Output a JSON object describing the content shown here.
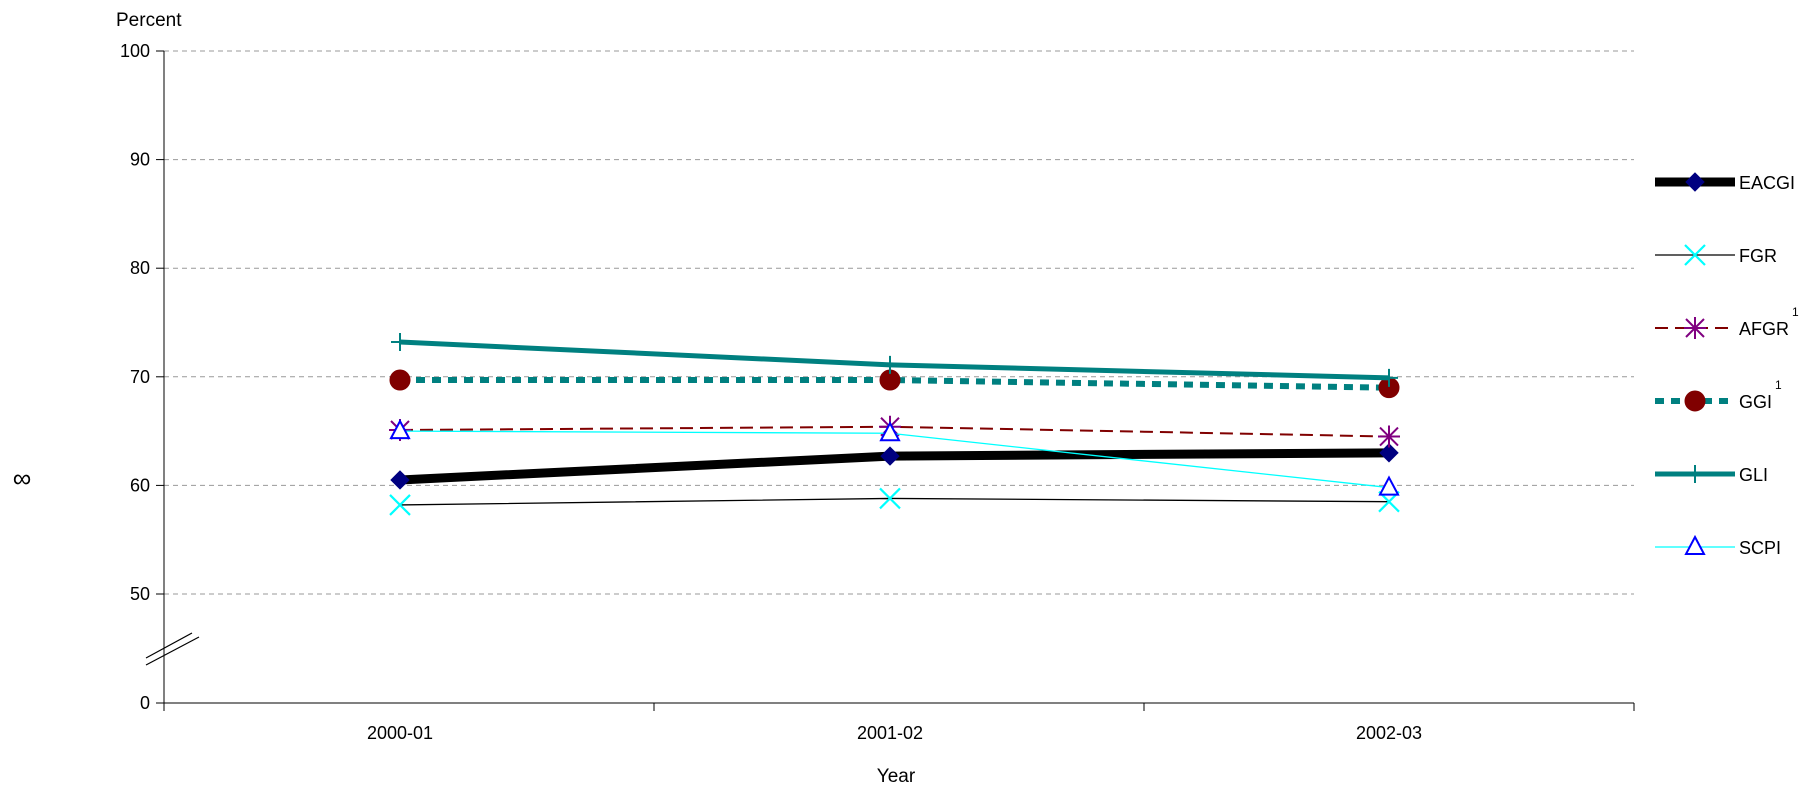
{
  "chart_data": {
    "type": "line",
    "title": "",
    "ylabel": "Percent",
    "xlabel": "Year",
    "side_mark": "∞",
    "categories": [
      "2000-01",
      "2001-02",
      "2002-03"
    ],
    "ylim": [
      0,
      100
    ],
    "yticks": [
      0,
      50,
      60,
      70,
      80,
      90,
      100
    ],
    "axis_break": "between 0 and 50",
    "grid": true,
    "legend_position": "right",
    "series": [
      {
        "name": "EACGI",
        "superscript": "",
        "values": [
          60.5,
          62.7,
          63.0
        ],
        "color": "#000000",
        "marker_color": "#000080",
        "marker": "diamond",
        "line_style": "solid-thick"
      },
      {
        "name": "FGR",
        "superscript": "",
        "values": [
          58.2,
          58.8,
          58.5
        ],
        "color": "#000000",
        "marker_color": "#00FFFF",
        "marker": "x",
        "line_style": "solid-thin"
      },
      {
        "name": "AFGR",
        "superscript": "1",
        "values": [
          65.1,
          65.4,
          64.5
        ],
        "color": "#800000",
        "marker_color": "#800080",
        "marker": "asterisk",
        "line_style": "dashed"
      },
      {
        "name": "GGI",
        "superscript": "1",
        "values": [
          69.7,
          69.7,
          69.0
        ],
        "color": "#008080",
        "marker_color": "#800000",
        "marker": "circle",
        "line_style": "dotted-thick"
      },
      {
        "name": "GLI",
        "superscript": "",
        "values": [
          73.2,
          71.1,
          69.9
        ],
        "color": "#008080",
        "marker_color": "#008080",
        "marker": "plus",
        "line_style": "solid-medium"
      },
      {
        "name": "SCPI",
        "superscript": "",
        "values": [
          65.0,
          64.8,
          59.8
        ],
        "color": "#00FFFF",
        "marker_color": "#0000FF",
        "marker": "triangle",
        "line_style": "solid-thin"
      }
    ]
  }
}
